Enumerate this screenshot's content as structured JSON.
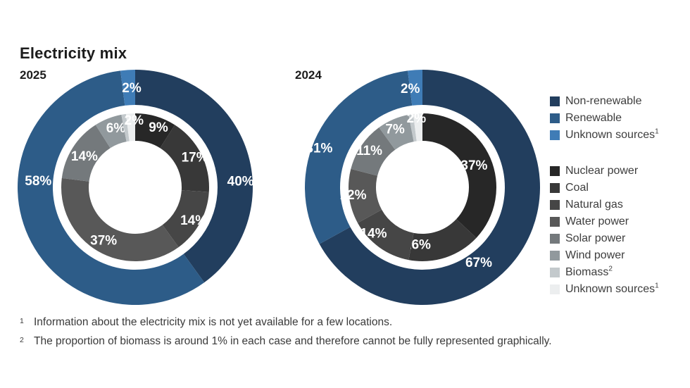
{
  "title": "Electricity mix",
  "chart_data": {
    "type": "donut",
    "unit": "%",
    "legend_position": "right",
    "charts": [
      {
        "year": "2025",
        "outer_ring": {
          "labels": [
            "Non-renewable",
            "Renewable",
            "Unknown sources"
          ],
          "values": [
            40,
            58,
            2
          ]
        },
        "inner_ring": {
          "labels": [
            "Nuclear power",
            "Coal",
            "Natural gas",
            "Water power",
            "Solar power",
            "Wind power",
            "Biomass",
            "Unknown sources"
          ],
          "values": [
            9,
            17,
            14,
            37,
            14,
            6,
            1,
            2
          ]
        }
      },
      {
        "year": "2024",
        "outer_ring": {
          "labels": [
            "Non-renewable",
            "Renewable",
            "Unknown sources"
          ],
          "values": [
            67,
            31,
            2
          ]
        },
        "inner_ring": {
          "labels": [
            "Nuclear power",
            "Coal",
            "Natural gas",
            "Water power",
            "Solar power",
            "Wind power",
            "Biomass",
            "Unknown sources"
          ],
          "values": [
            37,
            16,
            14,
            12,
            11,
            7,
            1,
            2
          ]
        }
      }
    ],
    "colors": {
      "outer": [
        "#223e5e",
        "#2d5c88",
        "#3f7cb6"
      ],
      "inner": [
        "#272727",
        "#383838",
        "#464646",
        "#585858",
        "#74797c",
        "#91999d",
        "#c3c9cc",
        "#eceeef"
      ]
    }
  },
  "legend": {
    "groups": [
      {
        "name": "outer-ring",
        "items": [
          {
            "label": "Non-renewable",
            "sup": ""
          },
          {
            "label": "Renewable",
            "sup": ""
          },
          {
            "label": "Unknown sources",
            "sup": "1"
          }
        ]
      },
      {
        "name": "inner-ring",
        "items": [
          {
            "label": "Nuclear power",
            "sup": ""
          },
          {
            "label": "Coal",
            "sup": ""
          },
          {
            "label": "Natural gas",
            "sup": ""
          },
          {
            "label": "Water power",
            "sup": ""
          },
          {
            "label": "Solar power",
            "sup": ""
          },
          {
            "label": "Wind power",
            "sup": ""
          },
          {
            "label": "Biomass",
            "sup": "2"
          },
          {
            "label": "Unknown sources",
            "sup": "1"
          }
        ]
      }
    ]
  },
  "footnotes": [
    {
      "marker": "1",
      "text": "Information about the electricity mix is not yet available for a few locations."
    },
    {
      "marker": "2",
      "text": "The proportion of biomass is around 1% in each case and therefore cannot be fully represented graphically."
    }
  ]
}
